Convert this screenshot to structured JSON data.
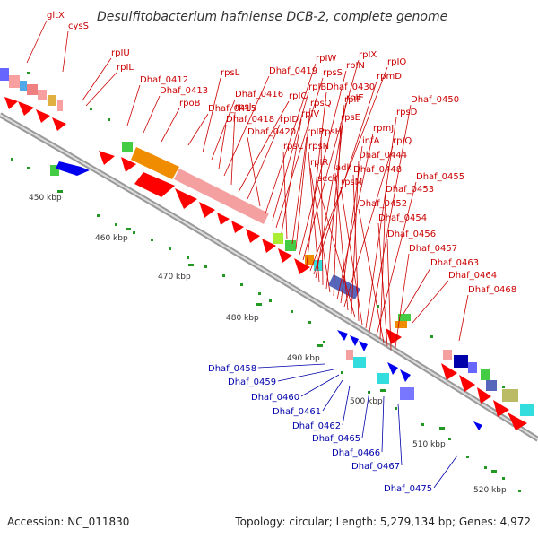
{
  "title": "Desulfitobacterium hafniense DCB-2, complete genome",
  "footer": {
    "accession": "Accession: NC_011830",
    "summary": "Topology: circular; Length: 5,279,134 bp; Genes: 4,972"
  },
  "ticks": [
    "450 kbp",
    "460 kbp",
    "470 kbp",
    "480 kbp",
    "490 kbp",
    "500 kbp",
    "510 kbp",
    "520 kbp"
  ],
  "colors": {
    "forward": "#ff0000",
    "reverse": "#0000ff",
    "label_forward": "#cc0000",
    "label_reverse": "#0000aa",
    "backbone": "#999999"
  },
  "red_labels": [
    "gltX",
    "cysS",
    "rpIU",
    "rpIL",
    "Dhaf_0412",
    "Dhaf_0413",
    "rpoB",
    "Dhaf_0415",
    "rpsL",
    "Dhaf_0416",
    "Dhaf_0418",
    "Dhaf_0419",
    "rpsJ",
    "rpIC",
    "rpID",
    "Dhaf_0420",
    "rpIW",
    "rpIB",
    "rpsS",
    "rpIV",
    "rpsC",
    "rpIP",
    "rpsQ",
    "rpIN",
    "rpIX",
    "Dhaf_0430",
    "rpIO",
    "rpmD",
    "rpIE",
    "rpsN",
    "rpsH",
    "rpIF",
    "rpIR",
    "rpsE",
    "rpmJ",
    "infA",
    "rpIQ",
    "adk",
    "Dhaf_0444",
    "secY",
    "Dhaf_0448",
    "rpsM",
    "rpsD",
    "Dhaf_0450",
    "Dhaf_0455",
    "Dhaf_0453",
    "Dhaf_0452",
    "Dhaf_0454",
    "Dhaf_0456",
    "Dhaf_0457",
    "Dhaf_0463",
    "Dhaf_0464",
    "Dhaf_0468"
  ],
  "blue_labels": [
    "Dhaf_0458",
    "Dhaf_0459",
    "Dhaf_0460",
    "Dhaf_0461",
    "Dhaf_0462",
    "Dhaf_0465",
    "Dhaf_0466",
    "Dhaf_0467",
    "Dhaf_0475"
  ]
}
